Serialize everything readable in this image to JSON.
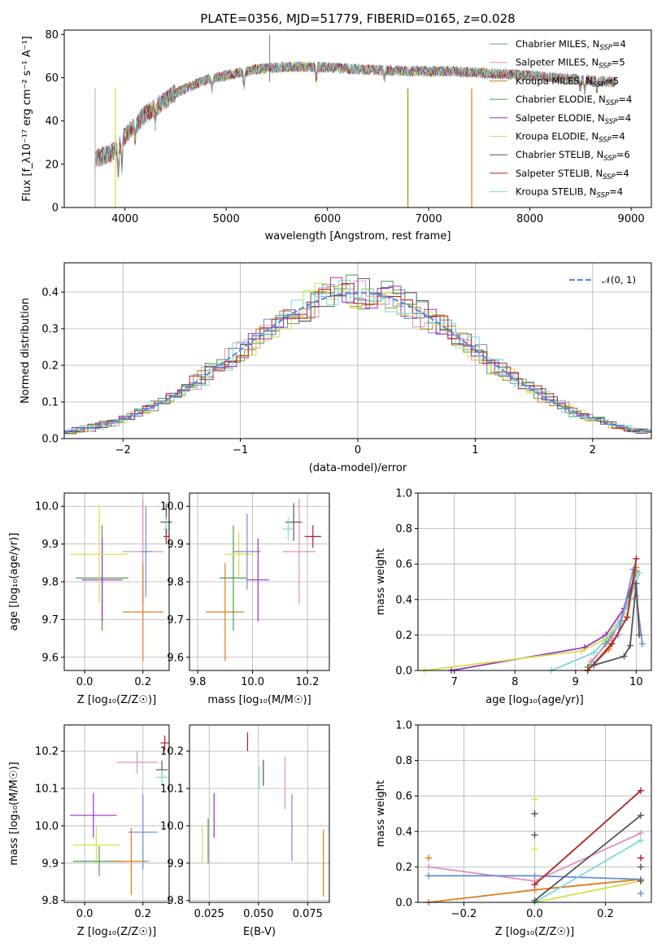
{
  "chart_data": [
    {
      "type": "line",
      "panel": "spectrum",
      "title": "PLATE=0356, MJD=51779, FIBERID=0165, z=0.028",
      "xlabel": "wavelength [Angstrom, rest frame]",
      "ylabel": "Flux [f_λ10⁻¹⁷ erg cm⁻² s⁻¹ A⁻¹]",
      "xlim": [
        3400,
        9200
      ],
      "ylim": [
        0,
        82
      ],
      "xticks": [
        "4000",
        "5000",
        "6000",
        "7000",
        "8000",
        "9000"
      ],
      "yticks": [
        "0",
        "20",
        "40",
        "60",
        "80"
      ],
      "legend_position": "upper-right",
      "series": [
        {
          "name": "Chabrier MILES, N_SSP=4",
          "legend": "Chabrier MILES, N",
          "sub": "SSP",
          "val": "=4",
          "color": "#6b8fd6"
        },
        {
          "name": "Salpeter MILES, N_SSP=5",
          "legend": "Salpeter MILES, N",
          "sub": "SSP",
          "val": "=5",
          "color": "#e58fc0"
        },
        {
          "name": "Kroupa MILES, N_SSP=5",
          "legend": "Kroupa MILES, N",
          "sub": "SSP",
          "val": "=5",
          "color": "#b8860b"
        },
        {
          "name": "Chabrier ELODIE, N_SSP=4",
          "legend": "Chabrier ELODIE, N",
          "sub": "SSP",
          "val": "=4",
          "color": "#4e9a4e"
        },
        {
          "name": "Salpeter ELODIE, N_SSP=4",
          "legend": "Salpeter ELODIE, N",
          "sub": "SSP",
          "val": "=4",
          "color": "#9b30c8"
        },
        {
          "name": "Kroupa ELODIE, N_SSP=4",
          "legend": "Kroupa ELODIE, N",
          "sub": "SSP",
          "val": "=4",
          "color": "#d4e04a"
        },
        {
          "name": "Chabrier STELIB, N_SSP=6",
          "legend": "Chabrier STELIB, N",
          "sub": "SSP",
          "val": "=6",
          "color": "#555555"
        },
        {
          "name": "Salpeter STELIB, N_SSP=4",
          "legend": "Salpeter STELIB, N",
          "sub": "SSP",
          "val": "=4",
          "color": "#b22222"
        },
        {
          "name": "Kroupa STELIB, N_SSP=4",
          "legend": "Kroupa STELIB, N",
          "sub": "SSP",
          "val": "=4",
          "color": "#7fd8e0"
        }
      ],
      "continuum": {
        "x": [
          3680,
          3900,
          4000,
          4200,
          4500,
          4800,
          5000,
          5300,
          5600,
          5900,
          6300,
          6800,
          7200,
          7600,
          8000,
          8500,
          8800
        ],
        "y": [
          22,
          26,
          33,
          43,
          53,
          59,
          61,
          64,
          65,
          65,
          64,
          63,
          63,
          62,
          61,
          59,
          58
        ]
      }
    },
    {
      "type": "step-histogram",
      "panel": "residuals",
      "xlabel": "(data-model)/error",
      "ylabel": "Normed distribution",
      "xlim": [
        -2.5,
        2.5
      ],
      "ylim": [
        0,
        0.48
      ],
      "xticks": [
        "−2",
        "−1",
        "0",
        "1",
        "2"
      ],
      "yticks": [
        "0.0",
        "0.1",
        "0.2",
        "0.3",
        "0.4"
      ],
      "legend": "𝒩(0, 1)",
      "legend_position": "upper-right",
      "reference_color": "#5b8fd8"
    },
    {
      "type": "scatter",
      "panel": "age-vs-Z",
      "xlabel": "Z [log₁₀(Z/Z☉)]",
      "ylabel": "age [log₁₀(age/yr)]",
      "xlim": [
        -0.07,
        0.29
      ],
      "ylim": [
        9.565,
        10.035
      ],
      "xticks": [
        "0.0",
        "0.2"
      ],
      "yticks": [
        "9.6",
        "9.7",
        "9.8",
        "9.9",
        "10.0"
      ],
      "points": [
        {
          "x": 0.06,
          "y": 9.81,
          "xerr": 0.09,
          "yerr": 0.14,
          "color": "#4e9a4e"
        },
        {
          "x": 0.06,
          "y": 9.805,
          "xerr": 0.07,
          "yerr": 0.11,
          "color": "#9b30c8"
        },
        {
          "x": 0.05,
          "y": 9.873,
          "xerr": 0.1,
          "yerr": 0.13,
          "color": "#d4e04a"
        },
        {
          "x": 0.2,
          "y": 9.88,
          "xerr": 0.07,
          "yerr": 0.14,
          "color": "#e58fc0"
        },
        {
          "x": 0.2,
          "y": 9.72,
          "xerr": 0.07,
          "yerr": 0.13,
          "color": "#e07b20"
        },
        {
          "x": 0.21,
          "y": 9.88,
          "xerr": 0.02,
          "yerr": 0.12,
          "color": "#6b8fd6"
        },
        {
          "x": 0.28,
          "y": 9.958,
          "xerr": 0.02,
          "yerr": 0.05,
          "color": "#555555"
        },
        {
          "x": 0.28,
          "y": 9.94,
          "xerr": 0.01,
          "yerr": 0.03,
          "color": "#7fd8e0"
        },
        {
          "x": 0.28,
          "y": 9.92,
          "xerr": 0.01,
          "yerr": 0.02,
          "color": "#b22222"
        }
      ]
    },
    {
      "type": "scatter",
      "panel": "age-vs-mass",
      "xlabel": "mass [log₁₀(M/M☉)]",
      "xlim": [
        9.77,
        10.28
      ],
      "ylim": [
        9.565,
        10.035
      ],
      "xticks": [
        "9.8",
        "10.0",
        "10.2"
      ],
      "yticks": [
        "9.6",
        "9.7",
        "9.8",
        "9.9",
        "10.0"
      ],
      "points": [
        {
          "x": 9.9,
          "y": 9.72,
          "xerr": 0.07,
          "yerr": 0.13,
          "color": "#e07b20"
        },
        {
          "x": 9.93,
          "y": 9.81,
          "xerr": 0.05,
          "yerr": 0.14,
          "color": "#4e9a4e"
        },
        {
          "x": 9.95,
          "y": 9.873,
          "xerr": 0.05,
          "yerr": 0.06,
          "color": "#d4e04a"
        },
        {
          "x": 9.98,
          "y": 9.88,
          "xerr": 0.05,
          "yerr": 0.1,
          "color": "#6b8fd6"
        },
        {
          "x": 10.02,
          "y": 9.805,
          "xerr": 0.04,
          "yerr": 0.11,
          "color": "#9b30c8"
        },
        {
          "x": 10.17,
          "y": 9.88,
          "xerr": 0.06,
          "yerr": 0.14,
          "color": "#e58fc0"
        },
        {
          "x": 10.15,
          "y": 9.958,
          "xerr": 0.03,
          "yerr": 0.05,
          "color": "#555555"
        },
        {
          "x": 10.13,
          "y": 9.94,
          "xerr": 0.02,
          "yerr": 0.03,
          "color": "#7fd8e0"
        },
        {
          "x": 10.22,
          "y": 9.92,
          "xerr": 0.03,
          "yerr": 0.03,
          "color": "#b22222"
        }
      ]
    },
    {
      "type": "line",
      "panel": "mass-weight-vs-age",
      "xlabel": "age [log₁₀(age/yr)]",
      "ylabel": "mass weight",
      "xlim": [
        6.4,
        10.25
      ],
      "ylim": [
        0,
        1
      ],
      "xticks": [
        "7",
        "8",
        "9",
        "10"
      ],
      "yticks": [
        "0.0",
        "0.2",
        "0.4",
        "0.6",
        "0.8",
        "1.0"
      ],
      "series": [
        {
          "color": "#9b30c8",
          "points": [
            [
              6.95,
              0.0
            ],
            [
              9.15,
              0.13
            ],
            [
              9.5,
              0.2
            ],
            [
              9.8,
              0.35
            ],
            [
              10.0,
              0.56
            ]
          ]
        },
        {
          "color": "#d4e04a",
          "points": [
            [
              6.5,
              0.0
            ],
            [
              9.1,
              0.11
            ],
            [
              9.5,
              0.18
            ],
            [
              9.8,
              0.32
            ],
            [
              10.05,
              0.55
            ]
          ]
        },
        {
          "color": "#4e9a4e",
          "points": [
            [
              9.2,
              0.02
            ],
            [
              9.5,
              0.15
            ],
            [
              9.75,
              0.28
            ],
            [
              10.0,
              0.55
            ]
          ]
        },
        {
          "color": "#e07b20",
          "points": [
            [
              9.2,
              0.0
            ],
            [
              9.55,
              0.12
            ],
            [
              9.85,
              0.3
            ],
            [
              10.0,
              0.58
            ]
          ]
        },
        {
          "color": "#e58fc0",
          "points": [
            [
              9.25,
              0.05
            ],
            [
              9.6,
              0.18
            ],
            [
              9.85,
              0.38
            ],
            [
              10.0,
              0.42
            ]
          ]
        },
        {
          "color": "#7fd8e0",
          "points": [
            [
              8.6,
              0.0
            ],
            [
              9.3,
              0.1
            ],
            [
              9.7,
              0.25
            ],
            [
              9.9,
              0.4
            ],
            [
              10.05,
              0.55
            ]
          ]
        },
        {
          "color": "#6b8fd6",
          "points": [
            [
              9.3,
              0.03
            ],
            [
              9.7,
              0.2
            ],
            [
              9.95,
              0.57
            ],
            [
              10.1,
              0.15
            ]
          ]
        },
        {
          "color": "#b22222",
          "points": [
            [
              9.2,
              0.0
            ],
            [
              9.6,
              0.15
            ],
            [
              9.85,
              0.3
            ],
            [
              10.0,
              0.63
            ]
          ]
        },
        {
          "color": "#555555",
          "points": [
            [
              9.3,
              0.03
            ],
            [
              9.8,
              0.08
            ],
            [
              9.9,
              0.14
            ],
            [
              10.0,
              0.49
            ],
            [
              10.05,
              0.2
            ]
          ]
        }
      ]
    },
    {
      "type": "scatter",
      "panel": "mass-vs-Z",
      "xlabel": "Z [log₁₀(Z/Z☉)]",
      "ylabel": "mass [log₁₀(M/M☉)]",
      "xlim": [
        -0.07,
        0.29
      ],
      "ylim": [
        9.795,
        10.27
      ],
      "xticks": [
        "0.0",
        "0.2"
      ],
      "yticks": [
        "9.8",
        "9.9",
        "10.0",
        "10.1",
        "10.2"
      ],
      "points": [
        {
          "x": 0.03,
          "y": 10.028,
          "xerr": 0.08,
          "yerr": 0.06,
          "color": "#9b30c8"
        },
        {
          "x": 0.04,
          "y": 9.948,
          "xerr": 0.08,
          "yerr": 0.05,
          "color": "#d4e04a"
        },
        {
          "x": 0.05,
          "y": 9.905,
          "xerr": 0.09,
          "yerr": 0.04,
          "color": "#4e9a4e"
        },
        {
          "x": 0.16,
          "y": 9.905,
          "xerr": 0.06,
          "yerr": 0.09,
          "color": "#e07b20"
        },
        {
          "x": 0.2,
          "y": 9.983,
          "xerr": 0.05,
          "yerr": 0.1,
          "color": "#6b8fd6"
        },
        {
          "x": 0.18,
          "y": 10.17,
          "xerr": 0.07,
          "yerr": 0.03,
          "color": "#e58fc0"
        },
        {
          "x": 0.265,
          "y": 10.15,
          "xerr": 0.02,
          "yerr": 0.025,
          "color": "#555555"
        },
        {
          "x": 0.265,
          "y": 10.13,
          "xerr": 0.02,
          "yerr": 0.02,
          "color": "#7fd8e0"
        },
        {
          "x": 0.275,
          "y": 10.222,
          "xerr": 0.015,
          "yerr": 0.02,
          "color": "#b22222"
        }
      ]
    },
    {
      "type": "scatter",
      "panel": "mass-vs-EBV",
      "xlabel": "E(B-V)",
      "xlim": [
        0.015,
        0.086
      ],
      "ylim": [
        9.795,
        10.27
      ],
      "xticks": [
        "0.025",
        "0.050",
        "0.075"
      ],
      "yticks": [
        "9.8",
        "9.9",
        "10.0",
        "10.1",
        "10.2"
      ],
      "points": [
        {
          "x": 0.0215,
          "y": 9.948,
          "xerr": 0.0,
          "yerr": 0.05,
          "color": "#d4e04a"
        },
        {
          "x": 0.0245,
          "y": 9.96,
          "xerr": 0.0,
          "yerr": 0.06,
          "color": "#4e9a4e"
        },
        {
          "x": 0.0275,
          "y": 10.028,
          "xerr": 0.0,
          "yerr": 0.06,
          "color": "#9b30c8"
        },
        {
          "x": 0.0445,
          "y": 10.225,
          "xerr": 0.0,
          "yerr": 0.025,
          "color": "#b22222"
        },
        {
          "x": 0.0505,
          "y": 10.13,
          "xerr": 0.0,
          "yerr": 0.03,
          "color": "#7fd8e0"
        },
        {
          "x": 0.0525,
          "y": 10.142,
          "xerr": 0.0,
          "yerr": 0.035,
          "color": "#555555"
        },
        {
          "x": 0.0635,
          "y": 10.115,
          "xerr": 0.0,
          "yerr": 0.07,
          "color": "#e58fc0"
        },
        {
          "x": 0.067,
          "y": 9.995,
          "xerr": 0.0,
          "yerr": 0.09,
          "color": "#6b8fd6"
        },
        {
          "x": 0.083,
          "y": 9.9,
          "xerr": 0.0,
          "yerr": 0.09,
          "color": "#e07b20"
        }
      ]
    },
    {
      "type": "line",
      "panel": "mass-weight-vs-Z",
      "xlabel": "Z [log₁₀(Z/Z☉)]",
      "ylabel": "mass weight",
      "xlim": [
        -0.33,
        0.33
      ],
      "ylim": [
        0,
        1
      ],
      "xticks": [
        "−0.2",
        "0.0",
        "0.2"
      ],
      "yticks": [
        "0.0",
        "0.2",
        "0.4",
        "0.6",
        "0.8",
        "1.0"
      ],
      "series": [
        {
          "color": "#e07b20",
          "points": [
            [
              -0.3,
              0.0
            ],
            [
              0.0,
              0.07
            ],
            [
              0.3,
              0.13
            ]
          ]
        },
        {
          "color": "#e07b20",
          "points": [
            [
              -0.3,
              0.25
            ]
          ]
        },
        {
          "color": "#e58fc0",
          "points": [
            [
              -0.3,
              0.2
            ],
            [
              0.0,
              0.12
            ],
            [
              0.3,
              0.39
            ]
          ]
        },
        {
          "color": "#6b8fd6",
          "points": [
            [
              -0.3,
              0.15
            ],
            [
              0.0,
              0.15
            ],
            [
              0.3,
              0.13
            ]
          ]
        },
        {
          "color": "#d4e04a",
          "points": [
            [
              0.0,
              0.0
            ],
            [
              0.3,
              0.12
            ]
          ]
        },
        {
          "color": "#d4e04a",
          "points": [
            [
              0.0,
              0.58
            ]
          ]
        },
        {
          "color": "#d4e04a",
          "points": [
            [
              0.0,
              0.3
            ]
          ]
        },
        {
          "color": "#7fd8e0",
          "points": [
            [
              0.0,
              0.0
            ],
            [
              0.3,
              0.35
            ]
          ]
        },
        {
          "color": "#555555",
          "points": [
            [
              0.0,
              0.01
            ],
            [
              0.3,
              0.49
            ]
          ]
        },
        {
          "color": "#555555",
          "points": [
            [
              0.0,
              0.5
            ]
          ]
        },
        {
          "color": "#555555",
          "points": [
            [
              0.0,
              0.38
            ]
          ]
        },
        {
          "color": "#555555",
          "points": [
            [
              0.3,
              0.2
            ]
          ]
        },
        {
          "color": "#555555",
          "points": [
            [
              0.3,
              0.12
            ]
          ]
        },
        {
          "color": "#b22222",
          "points": [
            [
              0.0,
              0.1
            ],
            [
              0.3,
              0.63
            ]
          ]
        },
        {
          "color": "#b22222",
          "points": [
            [
              0.3,
              0.25
            ]
          ]
        },
        {
          "color": "#6b8fd6",
          "points": [
            [
              0.3,
              0.05
            ]
          ]
        }
      ]
    }
  ]
}
